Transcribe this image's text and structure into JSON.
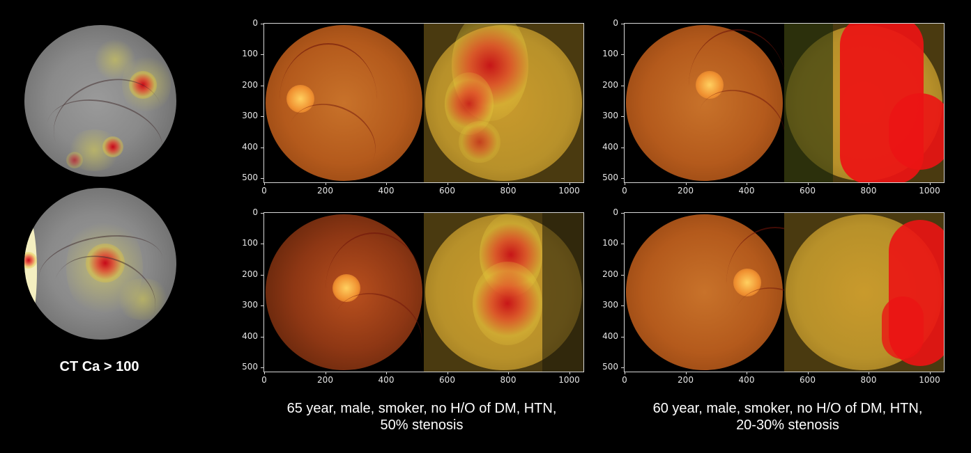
{
  "left_panel": {
    "caption": "CT Ca > 100"
  },
  "groups": [
    {
      "caption_line1": "65 year, male, smoker, no H/O of DM, HTN,",
      "caption_line2": "50% stenosis"
    },
    {
      "caption_line1": "60 year, male, smoker, no H/O of DM, HTN,",
      "caption_line2": "20-30% stenosis"
    }
  ],
  "axes": {
    "y_ticks": [
      "0",
      "100",
      "200",
      "300",
      "400",
      "500"
    ],
    "x_ticks": [
      "0",
      "200",
      "400",
      "600",
      "800",
      "1000"
    ]
  },
  "colors": {
    "background": "#000000",
    "fundus_orange": "#c0641e",
    "heat_red": "#e01010",
    "heat_yellow": "#c8b43c"
  }
}
